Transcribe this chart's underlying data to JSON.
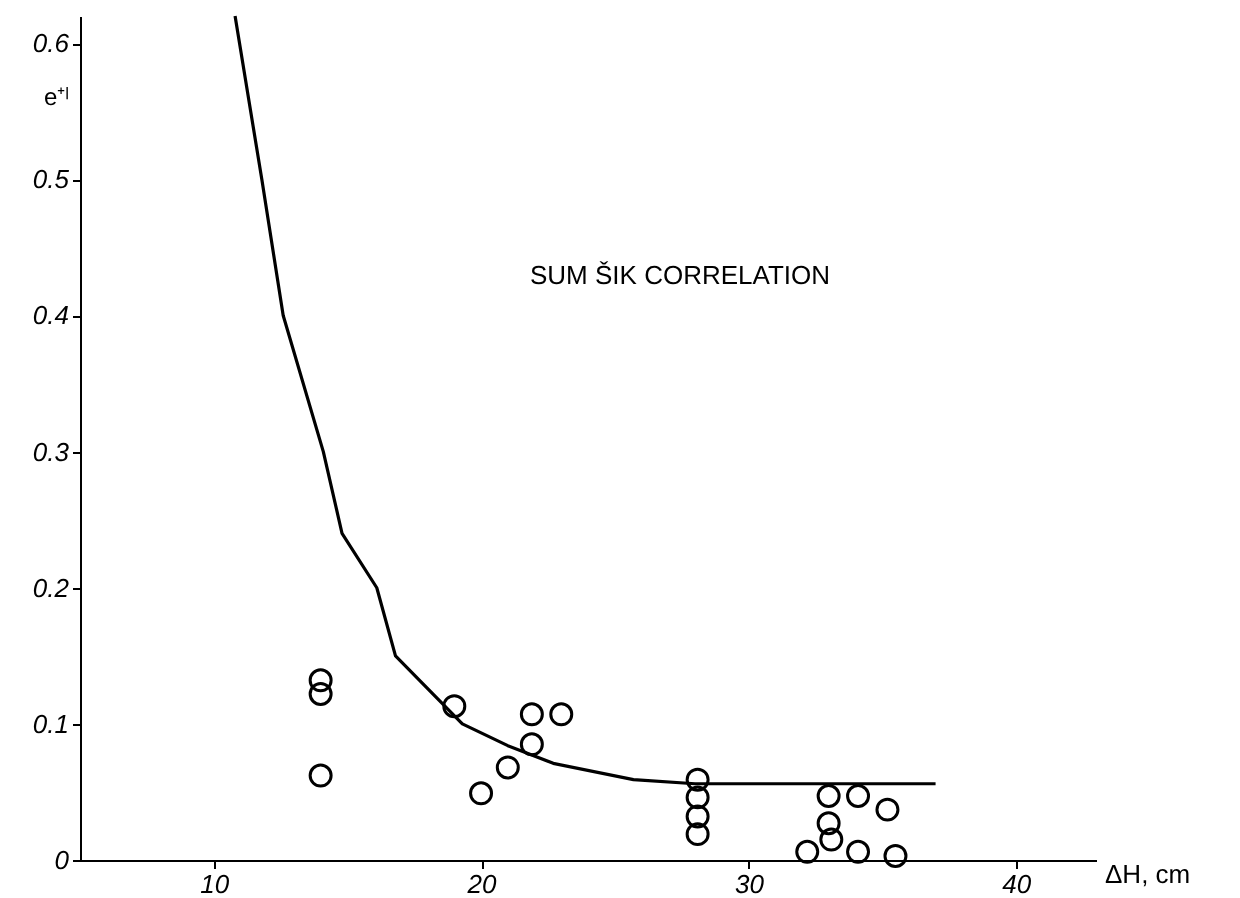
{
  "chart_data": {
    "type": "scatter",
    "xlabel": "ΔH, cm",
    "ylabel": "e⁺ˡ",
    "annotations": [
      "SUM ŠIK CORRELATION"
    ],
    "xlim": [
      5,
      43
    ],
    "ylim": [
      0,
      0.62
    ],
    "xticks": [
      10,
      20,
      30,
      40
    ],
    "yticks": [
      0,
      0.1,
      0.2,
      0.3,
      0.4,
      0.5,
      0.6
    ],
    "grid": false,
    "series": [
      {
        "marker": "circle",
        "color": "#000000",
        "x": [
          14,
          14,
          14,
          19,
          20,
          21,
          21.9,
          21.9,
          23,
          28.1,
          28.1,
          28.1,
          28.1,
          32.2,
          33,
          33,
          33.1,
          34.1,
          34.1,
          35.2,
          35.5
        ],
        "values": [
          0.132,
          0.122,
          0.062,
          0.113,
          0.049,
          0.068,
          0.107,
          0.085,
          0.107,
          0.059,
          0.046,
          0.032,
          0.019,
          0.006,
          0.047,
          0.027,
          0.015,
          0.047,
          0.006,
          0.037,
          0.003
        ]
      },
      {
        "type": "line",
        "marker": "none",
        "line_style": "solid",
        "color": "#000000",
        "x": [
          10.8,
          11.8,
          12.6,
          14.1,
          14.8,
          16.1,
          16.8,
          17.7,
          19.3,
          21,
          22.7,
          25.7,
          28,
          37
        ],
        "values": [
          0.62,
          0.5,
          0.4,
          0.3,
          0.24,
          0.2,
          0.15,
          0.132,
          0.1,
          0.084,
          0.071,
          0.059,
          0.056,
          0.056
        ]
      }
    ]
  }
}
